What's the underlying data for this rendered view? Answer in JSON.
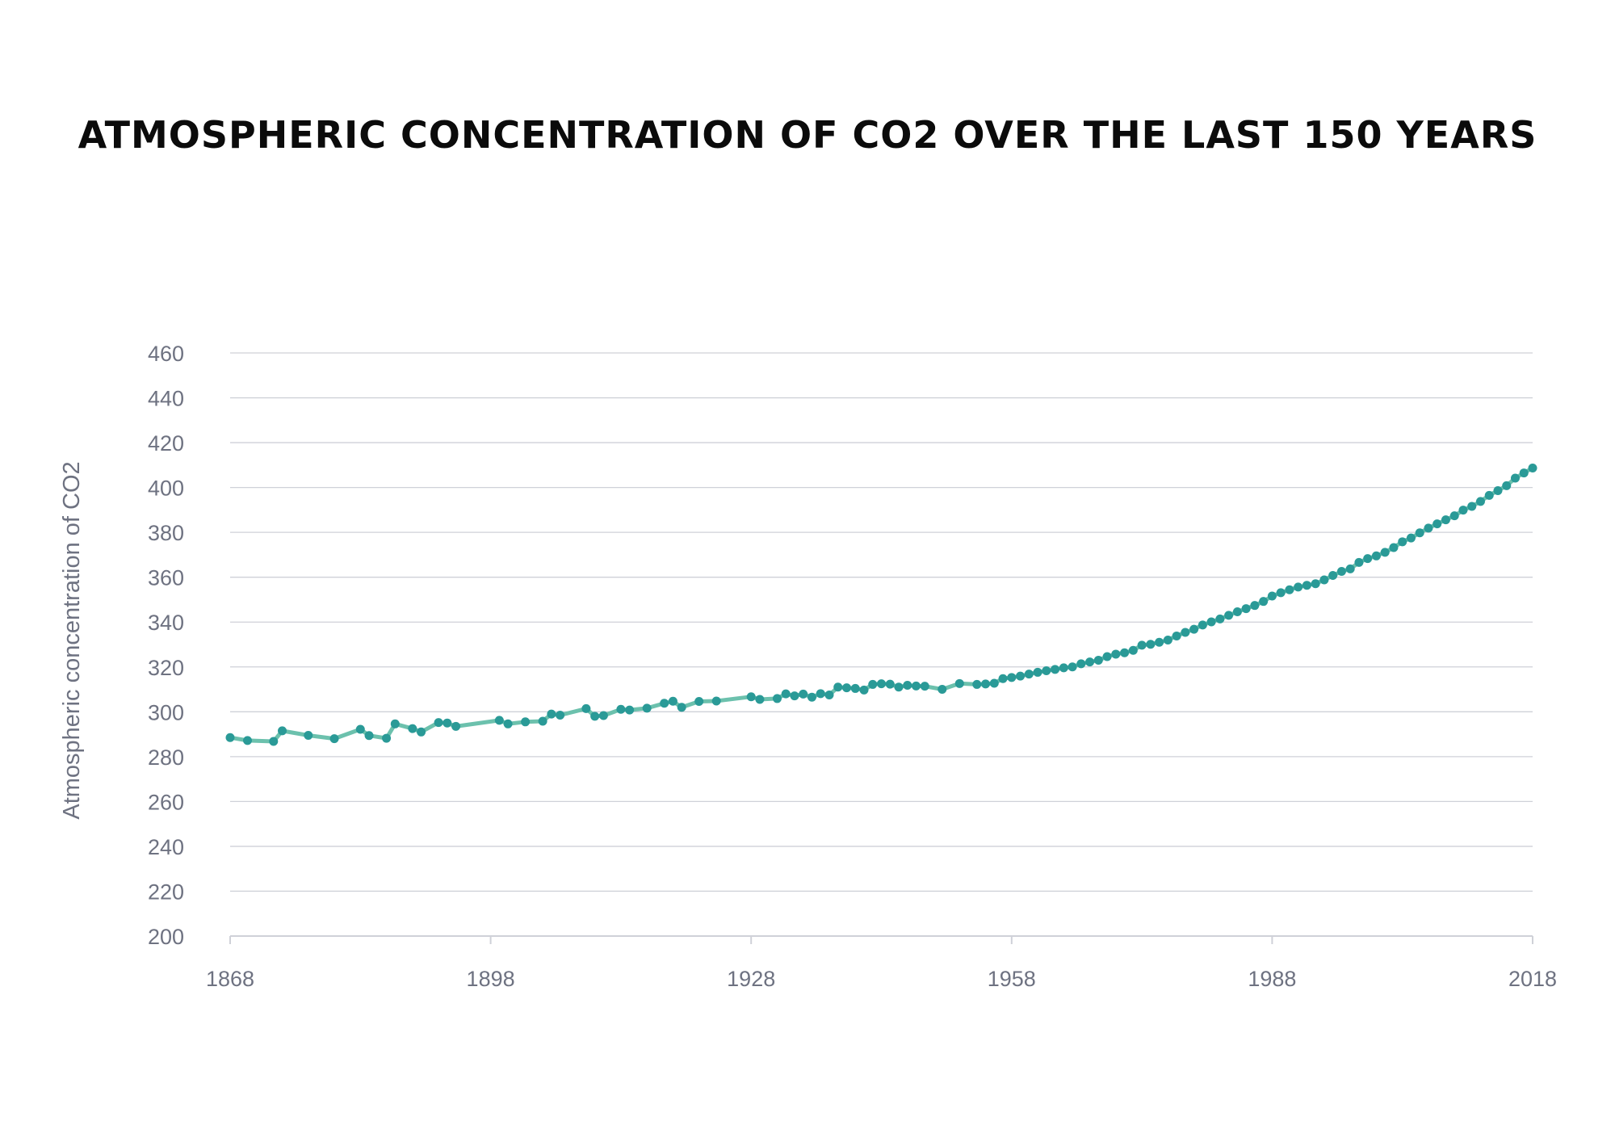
{
  "chart_data": {
    "type": "line",
    "title": "ATMOSPHERIC CONCENTRATION OF CO2 OVER THE LAST 150 YEARS",
    "xlabel": "",
    "ylabel": "Atmospheric concentration of CO2",
    "xlim": [
      1868,
      2018
    ],
    "ylim": [
      200,
      460
    ],
    "x_ticks": [
      "1868",
      "1898",
      "1928",
      "1958",
      "1988",
      "2018"
    ],
    "y_ticks": [
      "200",
      "220",
      "240",
      "260",
      "280",
      "300",
      "320",
      "340",
      "360",
      "380",
      "400",
      "420",
      "440",
      "460"
    ],
    "grid": true,
    "legend": "none",
    "colors": {
      "line": "#6cc1ad",
      "marker": "#2a9a97",
      "grid": "#cfd1d8",
      "text": "#6e7281"
    },
    "series": [
      {
        "x": [
          1868,
          1870,
          1873,
          1874,
          1877,
          1880,
          1883,
          1884,
          1886,
          1887,
          1889,
          1890,
          1892,
          1893,
          1894,
          1899,
          1900,
          1902,
          1904,
          1905,
          1906,
          1909,
          1910,
          1911,
          1913,
          1914,
          1916,
          1918,
          1919,
          1920,
          1922,
          1924,
          1928,
          1929,
          1931,
          1932,
          1933,
          1934,
          1935,
          1936,
          1937,
          1938,
          1939,
          1940,
          1941,
          1942,
          1943,
          1944,
          1945,
          1946,
          1947,
          1948,
          1950,
          1952,
          1954,
          1955,
          1956,
          1957,
          1958,
          1959,
          1960,
          1961,
          1962,
          1963,
          1964,
          1965,
          1966,
          1967,
          1968,
          1969,
          1970,
          1971,
          1972,
          1973,
          1974,
          1975,
          1976,
          1977,
          1978,
          1979,
          1980,
          1981,
          1982,
          1983,
          1984,
          1985,
          1986,
          1987,
          1988,
          1989,
          1990,
          1991,
          1992,
          1993,
          1994,
          1995,
          1996,
          1997,
          1998,
          1999,
          2000,
          2001,
          2002,
          2003,
          2004,
          2005,
          2006,
          2007,
          2008,
          2009,
          2010,
          2011,
          2012,
          2013,
          2014,
          2015,
          2016,
          2017,
          2018
        ],
        "values": [
          288.5,
          287.2,
          286.8,
          291.5,
          289.5,
          288.0,
          292.2,
          289.4,
          288.2,
          294.6,
          292.5,
          291.0,
          295.2,
          295.0,
          293.5,
          296.2,
          294.6,
          295.5,
          295.8,
          299.0,
          298.5,
          301.4,
          298.0,
          298.3,
          301.1,
          300.8,
          301.6,
          303.8,
          304.7,
          302.0,
          304.6,
          304.8,
          306.7,
          305.5,
          305.9,
          308.0,
          307.1,
          307.9,
          306.5,
          308.1,
          307.5,
          311.0,
          310.7,
          310.4,
          309.7,
          312.2,
          312.5,
          312.3,
          311.0,
          311.8,
          311.5,
          311.4,
          310.0,
          312.6,
          312.2,
          312.4,
          312.7,
          314.8,
          315.3,
          315.9,
          316.8,
          317.6,
          318.3,
          318.9,
          319.6,
          320.0,
          321.4,
          322.2,
          323.0,
          324.6,
          325.7,
          326.3,
          327.4,
          329.7,
          330.1,
          331.0,
          332.0,
          333.8,
          335.4,
          336.8,
          338.7,
          340.1,
          341.4,
          343.0,
          344.6,
          346.0,
          347.4,
          349.2,
          351.6,
          353.1,
          354.4,
          355.6,
          356.4,
          357.1,
          358.8,
          360.8,
          362.6,
          363.7,
          366.6,
          368.3,
          369.5,
          371.1,
          373.2,
          375.8,
          377.5,
          379.8,
          381.9,
          383.8,
          385.6,
          387.4,
          389.9,
          391.6,
          393.8,
          396.5,
          398.6,
          400.8,
          404.2,
          406.5,
          408.7
        ]
      }
    ]
  }
}
